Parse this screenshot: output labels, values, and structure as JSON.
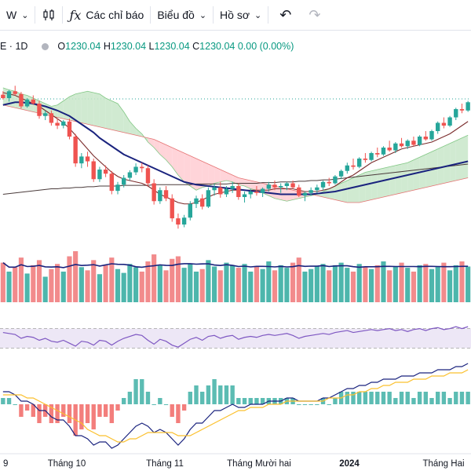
{
  "toolbar": {
    "interval_label": "W",
    "indicators_label": "Các chỉ báo",
    "chart_type_label": "Biểu đồ",
    "profile_label": "Hồ sơ"
  },
  "legend": {
    "symbol_interval": "E · 1D",
    "o_label": "O",
    "o_value": "1230.04",
    "h_label": "H",
    "h_value": "1230.04",
    "l_label": "L",
    "l_value": "1230.04",
    "c_label": "C",
    "c_value": "1230.04",
    "change": "0.00 (0.00%)"
  },
  "colors": {
    "up": "#26a69a",
    "down": "#ef5350",
    "ma_fast": "#1a237e",
    "ma_mid": "#7b2c2c",
    "ma_slow": "#4a3b3b",
    "cloud_up": "#c8e6c9",
    "cloud_down": "#ffcdd2",
    "rsi": "#7e57c2",
    "rsi_band": "#ede7f6",
    "macd": "#1a237e",
    "signal": "#fbc02d"
  },
  "chart_data": {
    "type": "candlestick",
    "x_ticks": [
      "9",
      "Tháng 10",
      "Tháng 11",
      "Tháng Mười hai",
      "2024",
      "Tháng Hai"
    ],
    "price_scale": [
      1000,
      1280
    ],
    "candles": [
      [
        1245,
        1250,
        1238,
        1240
      ],
      [
        1240,
        1252,
        1235,
        1250
      ],
      [
        1250,
        1258,
        1244,
        1246
      ],
      [
        1246,
        1249,
        1225,
        1228
      ],
      [
        1228,
        1240,
        1226,
        1238
      ],
      [
        1238,
        1244,
        1230,
        1232
      ],
      [
        1232,
        1236,
        1210,
        1214
      ],
      [
        1214,
        1222,
        1208,
        1218
      ],
      [
        1218,
        1222,
        1200,
        1204
      ],
      [
        1204,
        1210,
        1195,
        1200
      ],
      [
        1200,
        1208,
        1196,
        1206
      ],
      [
        1206,
        1210,
        1180,
        1184
      ],
      [
        1184,
        1188,
        1140,
        1145
      ],
      [
        1145,
        1160,
        1138,
        1155
      ],
      [
        1155,
        1162,
        1140,
        1148
      ],
      [
        1148,
        1152,
        1118,
        1122
      ],
      [
        1122,
        1140,
        1118,
        1136
      ],
      [
        1136,
        1142,
        1125,
        1130
      ],
      [
        1130,
        1134,
        1100,
        1105
      ],
      [
        1105,
        1118,
        1100,
        1114
      ],
      [
        1114,
        1128,
        1110,
        1124
      ],
      [
        1124,
        1135,
        1120,
        1132
      ],
      [
        1132,
        1145,
        1128,
        1140
      ],
      [
        1140,
        1146,
        1132,
        1138
      ],
      [
        1138,
        1142,
        1112,
        1116
      ],
      [
        1116,
        1122,
        1085,
        1090
      ],
      [
        1090,
        1110,
        1086,
        1106
      ],
      [
        1106,
        1112,
        1090,
        1094
      ],
      [
        1094,
        1100,
        1060,
        1065
      ],
      [
        1065,
        1072,
        1050,
        1056
      ],
      [
        1056,
        1070,
        1052,
        1066
      ],
      [
        1066,
        1090,
        1062,
        1086
      ],
      [
        1086,
        1098,
        1080,
        1094
      ],
      [
        1094,
        1100,
        1078,
        1082
      ],
      [
        1082,
        1110,
        1080,
        1106
      ],
      [
        1106,
        1115,
        1098,
        1110
      ],
      [
        1110,
        1118,
        1095,
        1100
      ],
      [
        1100,
        1112,
        1096,
        1108
      ],
      [
        1108,
        1118,
        1102,
        1112
      ],
      [
        1112,
        1116,
        1092,
        1096
      ],
      [
        1096,
        1104,
        1088,
        1100
      ],
      [
        1100,
        1108,
        1094,
        1104
      ],
      [
        1104,
        1112,
        1098,
        1102
      ],
      [
        1102,
        1110,
        1096,
        1108
      ],
      [
        1108,
        1118,
        1104,
        1114
      ],
      [
        1114,
        1120,
        1106,
        1110
      ],
      [
        1110,
        1116,
        1102,
        1112
      ],
      [
        1112,
        1118,
        1106,
        1116
      ],
      [
        1116,
        1120,
        1108,
        1110
      ],
      [
        1110,
        1114,
        1096,
        1098
      ],
      [
        1098,
        1104,
        1090,
        1102
      ],
      [
        1102,
        1110,
        1098,
        1106
      ],
      [
        1106,
        1114,
        1102,
        1110
      ],
      [
        1110,
        1120,
        1106,
        1118
      ],
      [
        1118,
        1124,
        1112,
        1116
      ],
      [
        1116,
        1128,
        1114,
        1126
      ],
      [
        1126,
        1136,
        1122,
        1134
      ],
      [
        1134,
        1146,
        1130,
        1142
      ],
      [
        1142,
        1152,
        1136,
        1140
      ],
      [
        1140,
        1154,
        1138,
        1152
      ],
      [
        1152,
        1160,
        1146,
        1150
      ],
      [
        1150,
        1162,
        1148,
        1160
      ],
      [
        1160,
        1168,
        1154,
        1158
      ],
      [
        1158,
        1170,
        1156,
        1168
      ],
      [
        1168,
        1178,
        1162,
        1164
      ],
      [
        1164,
        1176,
        1160,
        1174
      ],
      [
        1174,
        1182,
        1168,
        1170
      ],
      [
        1170,
        1180,
        1166,
        1178
      ],
      [
        1178,
        1184,
        1170,
        1172
      ],
      [
        1172,
        1186,
        1170,
        1184
      ],
      [
        1184,
        1192,
        1178,
        1180
      ],
      [
        1180,
        1194,
        1178,
        1192
      ],
      [
        1192,
        1206,
        1188,
        1204
      ],
      [
        1204,
        1212,
        1196,
        1200
      ],
      [
        1200,
        1214,
        1198,
        1212
      ],
      [
        1212,
        1226,
        1208,
        1224
      ],
      [
        1224,
        1232,
        1218,
        1222
      ],
      [
        1222,
        1236,
        1220,
        1234
      ]
    ],
    "volume": [
      62,
      48,
      55,
      70,
      45,
      58,
      66,
      40,
      52,
      60,
      48,
      72,
      80,
      55,
      50,
      66,
      44,
      58,
      70,
      52,
      46,
      60,
      55,
      48,
      64,
      75,
      58,
      50,
      68,
      72,
      54,
      60,
      48,
      52,
      66,
      56,
      50,
      62,
      58,
      54,
      60,
      48,
      56,
      52,
      64,
      50,
      58,
      54,
      62,
      70,
      48,
      52,
      56,
      60,
      50,
      58,
      62,
      54,
      48,
      60,
      56,
      52,
      58,
      64,
      50,
      56,
      62,
      54,
      48,
      58,
      60,
      52,
      56,
      62,
      50,
      58,
      64,
      56
    ],
    "rsi": [
      62,
      60,
      58,
      50,
      54,
      52,
      46,
      50,
      44,
      42,
      46,
      40,
      34,
      44,
      42,
      36,
      46,
      44,
      36,
      44,
      50,
      54,
      58,
      56,
      46,
      38,
      48,
      44,
      36,
      32,
      40,
      48,
      52,
      46,
      54,
      56,
      50,
      54,
      56,
      48,
      52,
      54,
      52,
      56,
      58,
      56,
      58,
      60,
      56,
      50,
      54,
      56,
      58,
      60,
      58,
      62,
      64,
      66,
      62,
      64,
      66,
      68,
      66,
      68,
      70,
      66,
      68,
      64,
      68,
      70,
      66,
      70,
      72,
      68,
      70,
      74,
      70,
      74
    ],
    "macd": [
      4,
      4,
      3,
      1,
      1,
      0,
      -2,
      -2,
      -4,
      -5,
      -5,
      -7,
      -10,
      -10,
      -11,
      -13,
      -12,
      -12,
      -14,
      -13,
      -11,
      -9,
      -7,
      -6,
      -7,
      -9,
      -8,
      -9,
      -11,
      -13,
      -11,
      -8,
      -6,
      -6,
      -4,
      -2,
      -2,
      -1,
      0,
      -1,
      -1,
      0,
      0,
      0,
      1,
      1,
      1,
      2,
      2,
      1,
      1,
      1,
      1,
      2,
      2,
      3,
      4,
      5,
      5,
      6,
      6,
      7,
      7,
      8,
      8,
      8,
      9,
      9,
      9,
      10,
      10,
      10,
      11,
      11,
      11,
      12,
      12,
      13
    ],
    "signal": [
      3,
      3,
      3,
      3,
      2,
      2,
      1,
      0,
      -1,
      -2,
      -3,
      -4,
      -5,
      -6,
      -8,
      -9,
      -10,
      -10,
      -11,
      -12,
      -12,
      -11,
      -11,
      -10,
      -9,
      -9,
      -9,
      -9,
      -9,
      -10,
      -10,
      -10,
      -9,
      -8,
      -7,
      -6,
      -5,
      -4,
      -3,
      -2,
      -2,
      -1,
      -1,
      -1,
      0,
      0,
      0,
      1,
      1,
      1,
      1,
      1,
      1,
      1,
      2,
      2,
      2,
      3,
      3,
      4,
      4,
      5,
      5,
      6,
      6,
      7,
      7,
      7,
      8,
      8,
      8,
      9,
      9,
      9,
      10,
      10,
      10,
      11
    ],
    "ichimoku": {
      "span_a": [
        1255,
        1252,
        1250,
        1246,
        1244,
        1240,
        1236,
        1232,
        1228,
        1230,
        1236,
        1242,
        1246,
        1248,
        1250,
        1248,
        1246,
        1240,
        1236,
        1232,
        1220,
        1206,
        1196,
        1188,
        1176,
        1168,
        1158,
        1150,
        1140,
        1128,
        1118,
        1112,
        1106,
        1110,
        1112,
        1116,
        1118,
        1120,
        1118,
        1114,
        1112,
        1108,
        1106,
        1102,
        1098,
        1094,
        1092,
        1090,
        1092,
        1094,
        1096,
        1098,
        1100,
        1104,
        1108,
        1112,
        1116,
        1120,
        1124,
        1128,
        1132,
        1134,
        1136,
        1138,
        1140,
        1142,
        1144,
        1146,
        1150,
        1154,
        1158,
        1162,
        1166,
        1170,
        1174,
        1178,
        1182,
        1186
      ],
      "span_b": [
        1230,
        1228,
        1226,
        1224,
        1222,
        1220,
        1218,
        1216,
        1214,
        1212,
        1210,
        1208,
        1206,
        1204,
        1202,
        1200,
        1198,
        1196,
        1194,
        1192,
        1190,
        1188,
        1186,
        1184,
        1182,
        1180,
        1176,
        1172,
        1168,
        1164,
        1160,
        1156,
        1152,
        1148,
        1144,
        1140,
        1136,
        1132,
        1128,
        1124,
        1122,
        1120,
        1118,
        1116,
        1114,
        1112,
        1110,
        1108,
        1106,
        1104,
        1102,
        1100,
        1098,
        1096,
        1094,
        1092,
        1090,
        1088,
        1088,
        1088,
        1090,
        1092,
        1094,
        1096,
        1098,
        1100,
        1102,
        1104,
        1106,
        1108,
        1110,
        1112,
        1114,
        1116,
        1118,
        1120,
        1122,
        1124
      ]
    },
    "ma_fast": [
      1230,
      1232,
      1234,
      1234,
      1233,
      1232,
      1230,
      1228,
      1225,
      1222,
      1218,
      1214,
      1208,
      1202,
      1196,
      1190,
      1182,
      1176,
      1170,
      1164,
      1158,
      1154,
      1150,
      1146,
      1142,
      1138,
      1134,
      1130,
      1126,
      1122,
      1118,
      1116,
      1114,
      1113,
      1112,
      1111,
      1110,
      1109,
      1108,
      1107,
      1106,
      1105,
      1104,
      1103,
      1102,
      1101,
      1100,
      1100,
      1100,
      1100,
      1100,
      1100,
      1101,
      1102,
      1103,
      1104,
      1106,
      1108,
      1110,
      1112,
      1114,
      1116,
      1118,
      1120,
      1122,
      1124,
      1126,
      1128,
      1130,
      1132,
      1134,
      1136,
      1138,
      1140,
      1142,
      1144,
      1146,
      1148
    ],
    "ma_mid": [
      1248,
      1246,
      1244,
      1240,
      1236,
      1232,
      1228,
      1222,
      1216,
      1210,
      1204,
      1196,
      1186,
      1176,
      1166,
      1156,
      1148,
      1140,
      1132,
      1126,
      1122,
      1120,
      1118,
      1116,
      1112,
      1106,
      1100,
      1096,
      1092,
      1088,
      1086,
      1086,
      1088,
      1092,
      1096,
      1100,
      1102,
      1104,
      1106,
      1106,
      1106,
      1106,
      1106,
      1106,
      1106,
      1108,
      1108,
      1108,
      1108,
      1106,
      1104,
      1104,
      1104,
      1106,
      1108,
      1112,
      1118,
      1124,
      1128,
      1134,
      1140,
      1146,
      1150,
      1154,
      1158,
      1162,
      1166,
      1168,
      1170,
      1172,
      1174,
      1176,
      1180,
      1184,
      1188,
      1194,
      1200,
      1206
    ],
    "ma_slow": [
      1100,
      1101,
      1102,
      1103,
      1104,
      1105,
      1106,
      1107,
      1108,
      1108,
      1109,
      1109,
      1110,
      1110,
      1111,
      1111,
      1112,
      1112,
      1112,
      1112,
      1113,
      1113,
      1113,
      1113,
      1113,
      1114,
      1114,
      1114,
      1114,
      1114,
      1114,
      1114,
      1115,
      1115,
      1115,
      1115,
      1115,
      1115,
      1116,
      1116,
      1116,
      1116,
      1116,
      1117,
      1117,
      1117,
      1118,
      1118,
      1118,
      1119,
      1119,
      1120,
      1120,
      1121,
      1121,
      1122,
      1123,
      1124,
      1125,
      1126,
      1127,
      1128,
      1129,
      1130,
      1131,
      1132,
      1133,
      1134,
      1135,
      1136,
      1137,
      1138,
      1139,
      1140,
      1141,
      1142,
      1143,
      1144
    ]
  }
}
